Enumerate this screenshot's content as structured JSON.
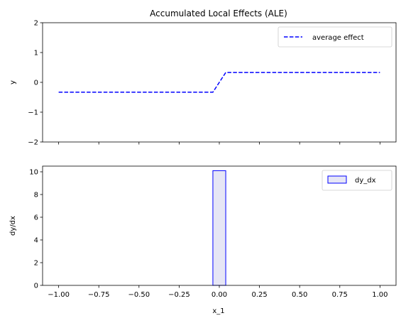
{
  "chart_data": [
    {
      "type": "line",
      "title": "Accumulated Local Effects (ALE)",
      "xlabel": "",
      "ylabel": "y",
      "xlim": [
        -1.1,
        1.1
      ],
      "ylim": [
        -2,
        2
      ],
      "yticks": [
        2,
        1,
        0,
        -1,
        -2
      ],
      "ytick_labels": [
        "2",
        "1",
        "0",
        "−1",
        "−2"
      ],
      "xticks": [
        -1.0,
        -0.75,
        -0.5,
        -0.25,
        0.0,
        0.25,
        0.5,
        0.75,
        1.0
      ],
      "grid": false,
      "legend": "top-right",
      "series": [
        {
          "name": "average effect",
          "color": "#0000ff",
          "style": "dashed",
          "x": [
            -1.0,
            -0.04,
            0.04,
            1.0
          ],
          "y": [
            -0.33,
            -0.33,
            0.33,
            0.33
          ]
        }
      ]
    },
    {
      "type": "bar",
      "title": "",
      "xlabel": "x_1",
      "ylabel": "dy/dx",
      "xlim": [
        -1.1,
        1.1
      ],
      "ylim": [
        0,
        10.5
      ],
      "yticks": [
        0,
        2,
        4,
        6,
        8,
        10
      ],
      "ytick_labels": [
        "0",
        "2",
        "4",
        "6",
        "8",
        "10"
      ],
      "xticks": [
        -1.0,
        -0.75,
        -0.5,
        -0.25,
        0.0,
        0.25,
        0.5,
        0.75,
        1.0
      ],
      "xtick_labels": [
        "−1.00",
        "−0.75",
        "−0.50",
        "−0.25",
        "0.00",
        "0.25",
        "0.50",
        "0.75",
        "1.00"
      ],
      "grid": false,
      "legend": "top-right",
      "series": [
        {
          "name": "dy_dx",
          "edge_color": "#0000ff",
          "fill_color": "#e6e6f5",
          "bins": [
            {
              "x0": -0.04,
              "x1": 0.04,
              "value": 10.1
            }
          ]
        }
      ]
    }
  ]
}
